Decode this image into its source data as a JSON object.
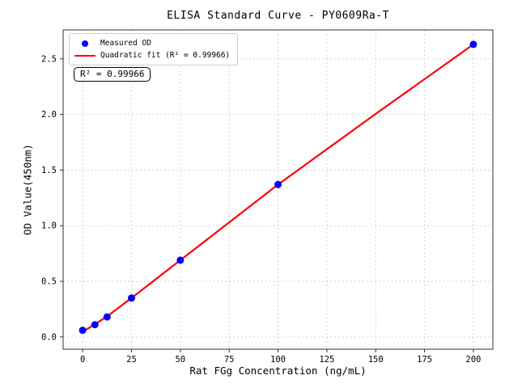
{
  "chart_data": {
    "type": "scatter",
    "title": "ELISA Standard Curve - PY0609Ra-T",
    "xlabel": "Rat FGg Concentration (ng/mL)",
    "ylabel": "OD Value(450nm)",
    "xlim": [
      -10,
      210
    ],
    "ylim": [
      -0.11,
      2.76
    ],
    "xticks": [
      0,
      25,
      50,
      75,
      100,
      125,
      150,
      175,
      200
    ],
    "xtick_labels": [
      "0",
      "25",
      "50",
      "75",
      "100",
      "125",
      "150",
      "175",
      "200"
    ],
    "yticks": [
      0.0,
      0.5,
      1.0,
      1.5,
      2.0,
      2.5
    ],
    "ytick_labels": [
      "0.0",
      "0.5",
      "1.0",
      "1.5",
      "2.0",
      "2.5"
    ],
    "grid": true,
    "grid_style": "dashed",
    "legend_position": "upper-left",
    "series": [
      {
        "name": "Measured OD",
        "type": "scatter",
        "color": "#0000ff",
        "x": [
          0,
          6.25,
          12.5,
          25,
          50,
          100,
          200
        ],
        "y": [
          0.06,
          0.11,
          0.18,
          0.35,
          0.69,
          1.37,
          2.63
        ]
      },
      {
        "name": "Quadratic fit (R² = 0.99966)",
        "type": "line",
        "color": "#ff0000",
        "x": [
          0,
          6.25,
          12.5,
          25,
          50,
          100,
          150,
          200
        ],
        "y": [
          0.045,
          0.115,
          0.185,
          0.35,
          0.69,
          1.37,
          2.005,
          2.63
        ]
      }
    ],
    "annotation": "R² = 0.99966",
    "r_squared": 0.99966
  },
  "colors": {
    "scatter": "#0000ff",
    "fit_line": "#ff0000",
    "grid": "#c9c9c9",
    "spine": "#333333",
    "background": "#ffffff"
  }
}
